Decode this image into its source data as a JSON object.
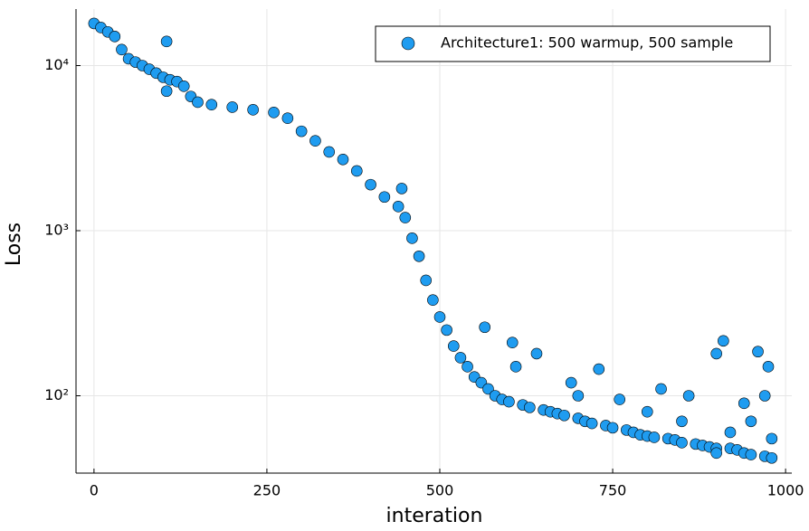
{
  "chart_data": {
    "type": "scatter",
    "x_label": "interation",
    "y_label": "Loss",
    "log_y": true,
    "grid": true,
    "legend_position": "top-right",
    "xlim": [
      -26,
      1009
    ],
    "xticks": [
      0,
      250,
      500,
      750,
      1000
    ],
    "ylim": [
      34,
      22000
    ],
    "yticks": [
      {
        "value": 100,
        "label": "10²"
      },
      {
        "value": 1000,
        "label": "10³"
      },
      {
        "value": 10000,
        "label": "10⁴"
      }
    ],
    "series": [
      {
        "name": "Architecture1: 500 warmup, 500 sample",
        "color": "#1f9cf0",
        "x": [
          0,
          10,
          20,
          30,
          40,
          50,
          60,
          70,
          80,
          90,
          100,
          105,
          105,
          110,
          120,
          130,
          140,
          150,
          170,
          200,
          230,
          260,
          280,
          300,
          320,
          340,
          360,
          380,
          400,
          420,
          440,
          445,
          450,
          460,
          470,
          480,
          490,
          500,
          510,
          520,
          530,
          540,
          550,
          560,
          565,
          570,
          580,
          590,
          600,
          605,
          610,
          620,
          630,
          640,
          650,
          660,
          670,
          680,
          690,
          700,
          700,
          710,
          720,
          730,
          740,
          750,
          760,
          770,
          780,
          790,
          800,
          800,
          810,
          820,
          830,
          840,
          850,
          850,
          860,
          870,
          880,
          890,
          900,
          900,
          900,
          910,
          920,
          920,
          930,
          940,
          940,
          950,
          950,
          960,
          970,
          970,
          975,
          980,
          980
        ],
        "values": [
          18000,
          17000,
          16000,
          15000,
          12500,
          11000,
          10500,
          10000,
          9500,
          9000,
          8500,
          14000,
          7000,
          8200,
          8000,
          7500,
          6500,
          6000,
          5800,
          5600,
          5400,
          5200,
          4800,
          4000,
          3500,
          3000,
          2700,
          2300,
          1900,
          1600,
          1400,
          1800,
          1200,
          900,
          700,
          500,
          380,
          300,
          250,
          200,
          170,
          150,
          130,
          120,
          260,
          110,
          100,
          95,
          92,
          210,
          150,
          88,
          85,
          180,
          82,
          80,
          78,
          76,
          120,
          73,
          100,
          70,
          68,
          145,
          66,
          64,
          95,
          62,
          60,
          58,
          57,
          80,
          56,
          110,
          55,
          54,
          52,
          70,
          100,
          51,
          50,
          49,
          48,
          180,
          45,
          215,
          48,
          60,
          47,
          45,
          90,
          44,
          70,
          185,
          43,
          100,
          150,
          42,
          55
        ]
      }
    ]
  }
}
